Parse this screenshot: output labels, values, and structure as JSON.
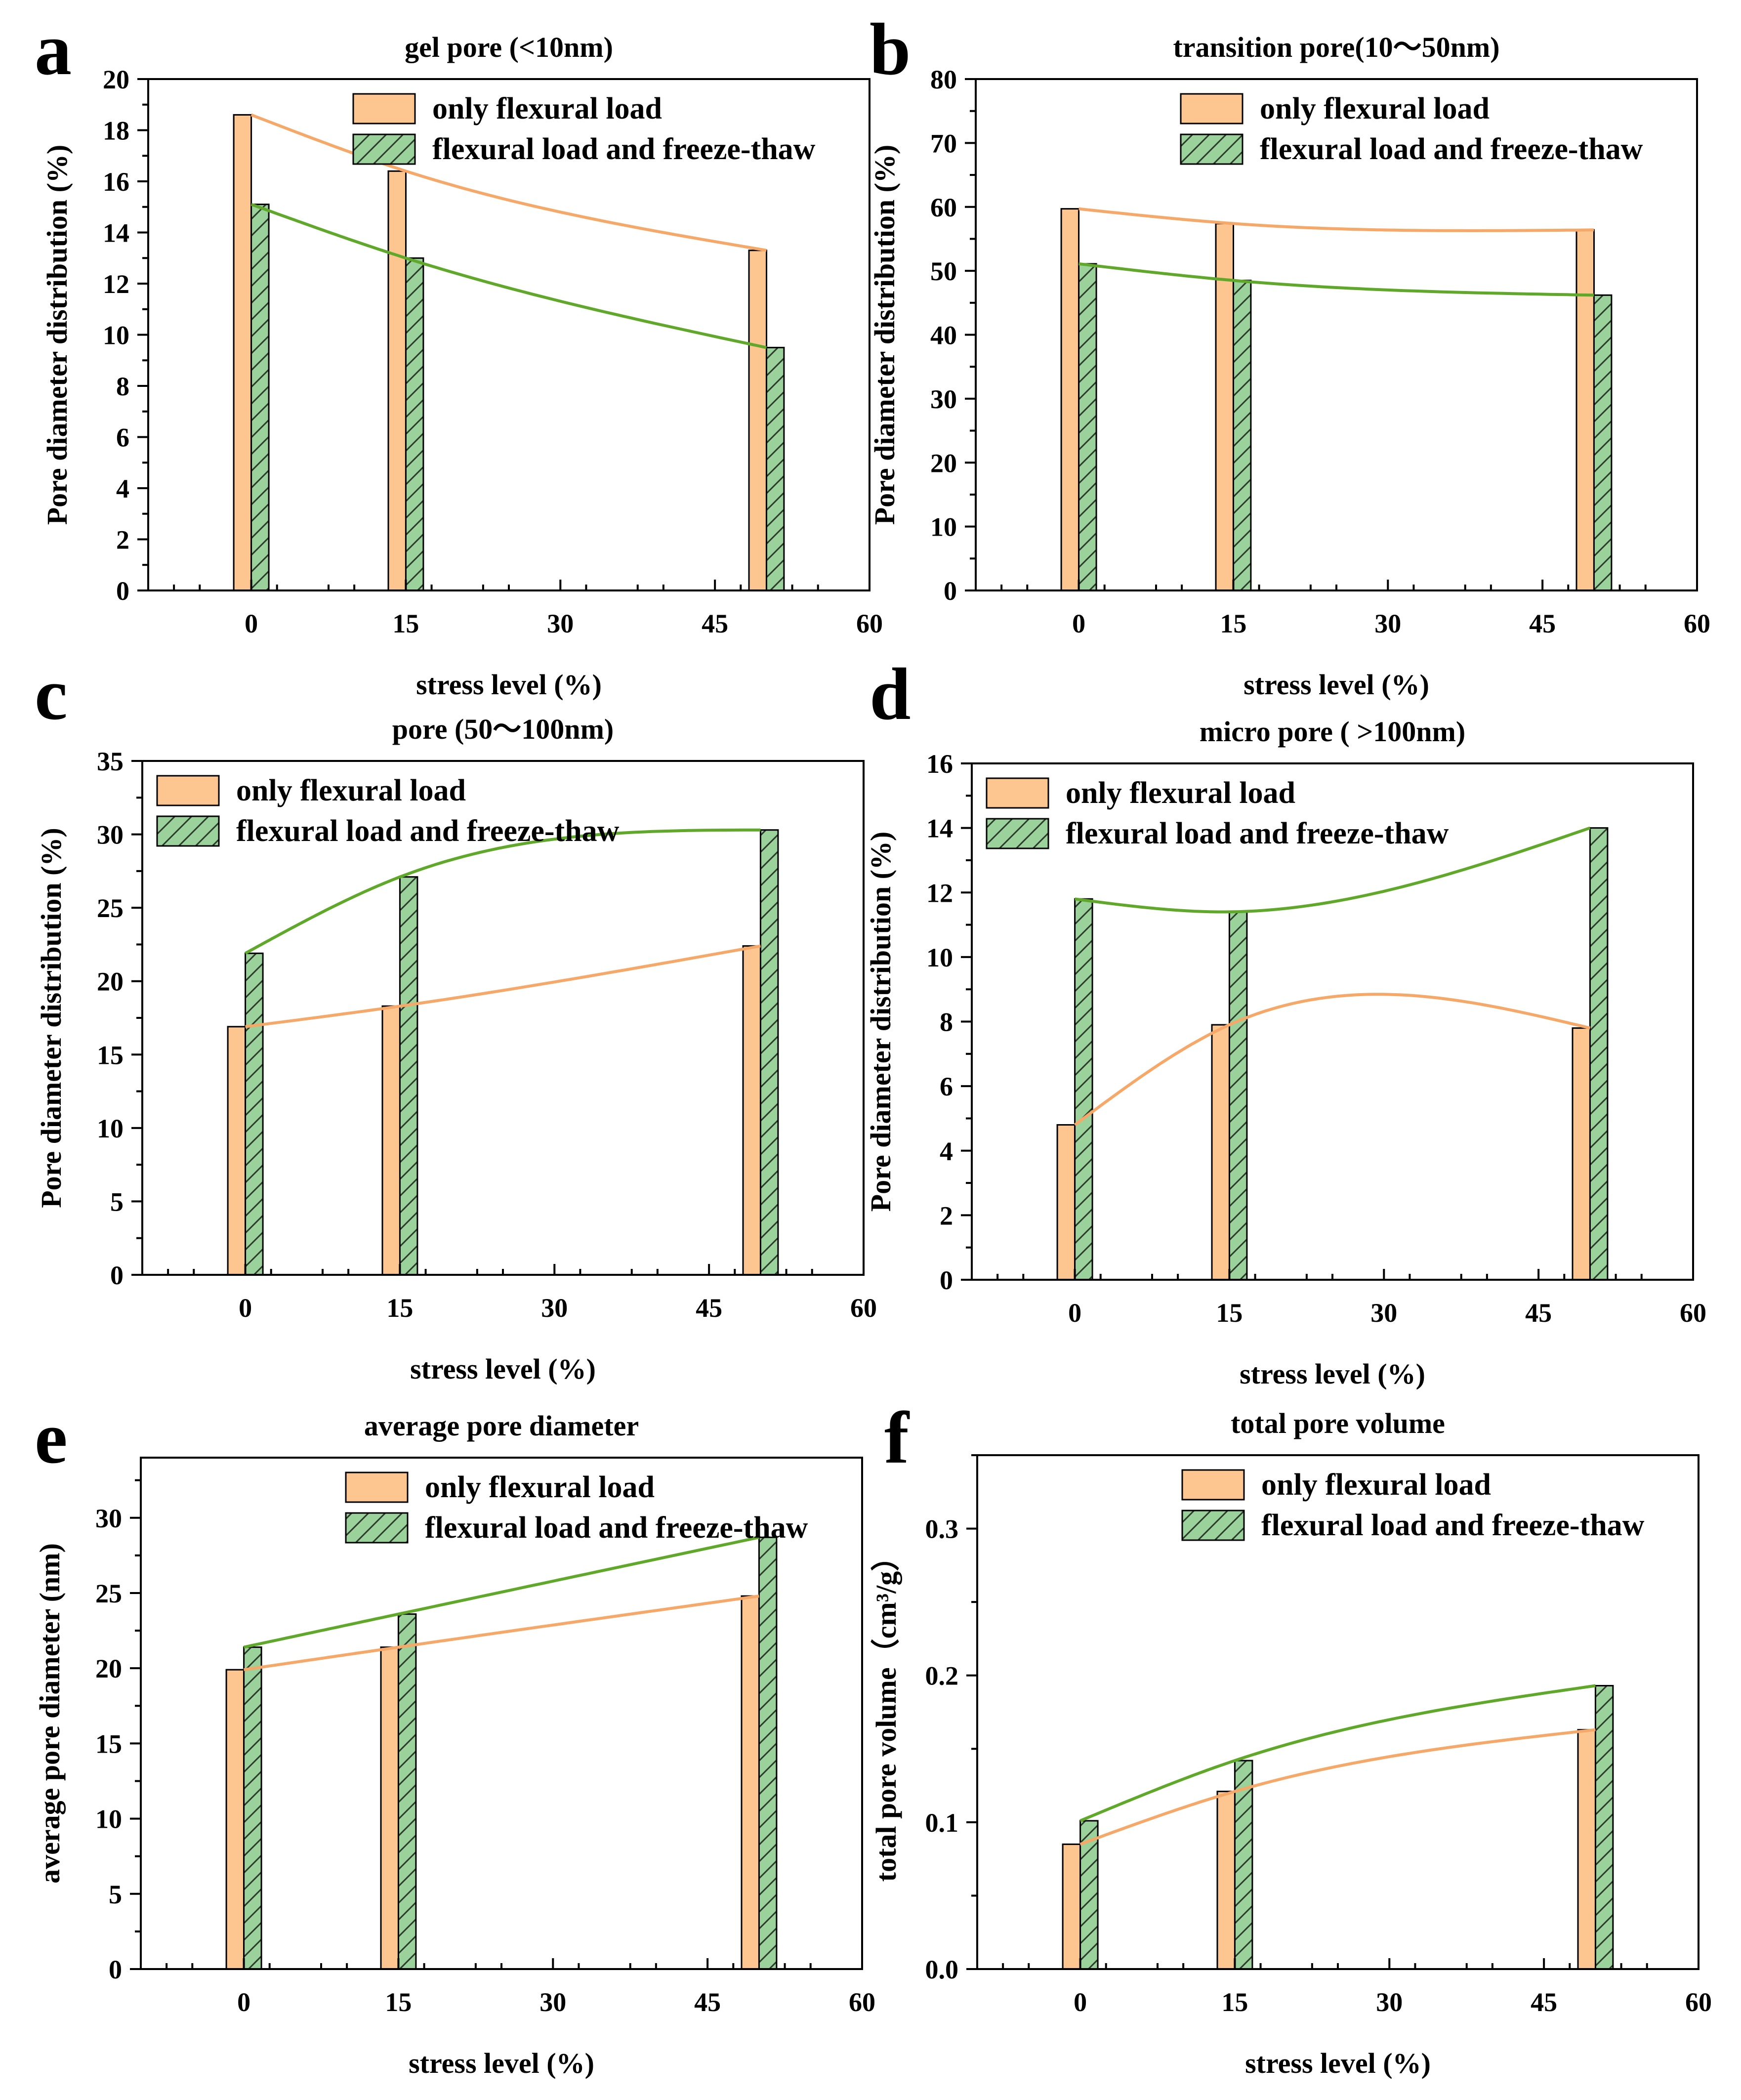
{
  "colors": {
    "only_flexural": "#FDC58F",
    "only_flexural_line": "#F5A868",
    "freeze_thaw": "#9BD19B",
    "freeze_thaw_line": "#5FA82A",
    "hatch": "#2B3A2B",
    "axis": "#000000"
  },
  "legend_labels": [
    "only flexural load",
    "flexural load and freeze-thaw"
  ],
  "chart_data": [
    {
      "letter": "a",
      "type": "bar",
      "title": "gel pore (<10nm)",
      "xlabel": "stress level (%)",
      "ylabel": "Pore diameter distribution (%)",
      "xlim": [
        -10,
        60
      ],
      "ylim": [
        0,
        20
      ],
      "xticks": [
        0,
        15,
        30,
        45,
        60
      ],
      "yticks": [
        0,
        2,
        4,
        6,
        8,
        10,
        12,
        14,
        16,
        18,
        20
      ],
      "legend_position": "top-right",
      "x": [
        0,
        15,
        50
      ],
      "series": [
        {
          "name": "only flexural load",
          "values": [
            18.6,
            16.4,
            13.3
          ]
        },
        {
          "name": "flexural load and freeze-thaw",
          "values": [
            15.1,
            13.0,
            9.5
          ]
        }
      ]
    },
    {
      "letter": "b",
      "type": "bar",
      "title": "transition pore(10～50nm)",
      "xlabel": "stress level (%)",
      "ylabel": "Pore diameter distribution (%)",
      "xlim": [
        -10,
        60
      ],
      "ylim": [
        0,
        80
      ],
      "xticks": [
        0,
        15,
        30,
        45,
        60
      ],
      "yticks": [
        0,
        10,
        20,
        30,
        40,
        50,
        60,
        70,
        80
      ],
      "legend_position": "top-right",
      "x": [
        0,
        15,
        50
      ],
      "series": [
        {
          "name": "only flexural load",
          "values": [
            59.7,
            57.4,
            56.4
          ]
        },
        {
          "name": "flexural load and freeze-thaw",
          "values": [
            51.1,
            48.5,
            46.2
          ]
        }
      ]
    },
    {
      "letter": "c",
      "type": "bar",
      "title": "pore (50～100nm)",
      "xlabel": "stress level (%)",
      "ylabel": "Pore diameter distribution (%)",
      "xlim": [
        -10,
        60
      ],
      "ylim": [
        0,
        35
      ],
      "xticks": [
        0,
        15,
        30,
        45,
        60
      ],
      "yticks": [
        0,
        5,
        10,
        15,
        20,
        25,
        30,
        35
      ],
      "legend_position": "top-left",
      "x": [
        0,
        15,
        50
      ],
      "series": [
        {
          "name": "only flexural load",
          "values": [
            16.9,
            18.3,
            22.4
          ]
        },
        {
          "name": "flexural load and freeze-thaw",
          "values": [
            21.9,
            27.1,
            30.3
          ]
        }
      ]
    },
    {
      "letter": "d",
      "type": "bar",
      "title": "micro pore ( >100nm)",
      "xlabel": "stress level (%)",
      "ylabel": "Pore diameter distribution (%)",
      "xlim": [
        -10,
        60
      ],
      "ylim": [
        0,
        16
      ],
      "xticks": [
        0,
        15,
        30,
        45,
        60
      ],
      "yticks": [
        0,
        2,
        4,
        6,
        8,
        10,
        12,
        14,
        16
      ],
      "legend_position": "top-left",
      "x": [
        0,
        15,
        50
      ],
      "series": [
        {
          "name": "only flexural load",
          "values": [
            4.8,
            7.9,
            7.8
          ]
        },
        {
          "name": "flexural load and freeze-thaw",
          "values": [
            11.8,
            11.4,
            14.0
          ]
        }
      ]
    },
    {
      "letter": "e",
      "type": "bar",
      "title": "average pore diameter",
      "xlabel": "stress level (%)",
      "ylabel": "average pore diameter (nm)",
      "xlim": [
        -10,
        60
      ],
      "ylim": [
        0,
        34
      ],
      "xticks": [
        0,
        15,
        30,
        45,
        60
      ],
      "yticks": [
        0,
        5,
        10,
        15,
        20,
        25,
        30
      ],
      "legend_position": "top-right",
      "x": [
        0,
        15,
        50
      ],
      "series": [
        {
          "name": "only flexural load",
          "values": [
            19.9,
            21.4,
            24.8
          ]
        },
        {
          "name": "flexural load and freeze-thaw",
          "values": [
            21.4,
            23.6,
            28.7
          ]
        }
      ]
    },
    {
      "letter": "f",
      "type": "bar",
      "title": "total pore volume",
      "xlabel": "stress level (%)",
      "ylabel": "total pore volume（cm³/g）",
      "xlim": [
        -10,
        60
      ],
      "ylim": [
        0.0,
        0.35
      ],
      "xticks": [
        0,
        15,
        30,
        45,
        60
      ],
      "yticks": [
        0.0,
        0.1,
        0.2,
        0.3
      ],
      "ytick_labels": [
        "0.0",
        "0.1",
        "0.2",
        "0.3"
      ],
      "legend_position": "top-right",
      "x": [
        0,
        15,
        50
      ],
      "series": [
        {
          "name": "only flexural load",
          "values": [
            0.085,
            0.121,
            0.163
          ]
        },
        {
          "name": "flexural load and freeze-thaw",
          "values": [
            0.101,
            0.142,
            0.193
          ]
        }
      ]
    }
  ]
}
